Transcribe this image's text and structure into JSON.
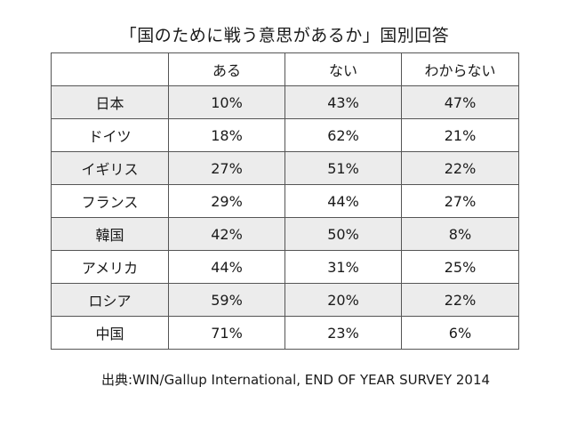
{
  "title": "「国のために戦う意思があるか」国別回答",
  "source": "出典:WIN/Gallup International, END OF YEAR SURVEY 2014",
  "chart_data": {
    "type": "table",
    "title": "「国のために戦う意思があるか」国別回答",
    "columns": [
      "",
      "ある",
      "ない",
      "わからない"
    ],
    "rows": [
      {
        "country": "日本",
        "values": [
          "10%",
          "43%",
          "47%"
        ]
      },
      {
        "country": "ドイツ",
        "values": [
          "18%",
          "62%",
          "21%"
        ]
      },
      {
        "country": "イギリス",
        "values": [
          "27%",
          "51%",
          "22%"
        ]
      },
      {
        "country": "フランス",
        "values": [
          "29%",
          "44%",
          "27%"
        ]
      },
      {
        "country": "韓国",
        "values": [
          "42%",
          "50%",
          "8%"
        ]
      },
      {
        "country": "アメリカ",
        "values": [
          "44%",
          "31%",
          "25%"
        ]
      },
      {
        "country": "ロシア",
        "values": [
          "59%",
          "20%",
          "22%"
        ]
      },
      {
        "country": "中国",
        "values": [
          "71%",
          "23%",
          "6%"
        ]
      }
    ],
    "row_shading": [
      "#ececec",
      "#ffffff"
    ]
  }
}
